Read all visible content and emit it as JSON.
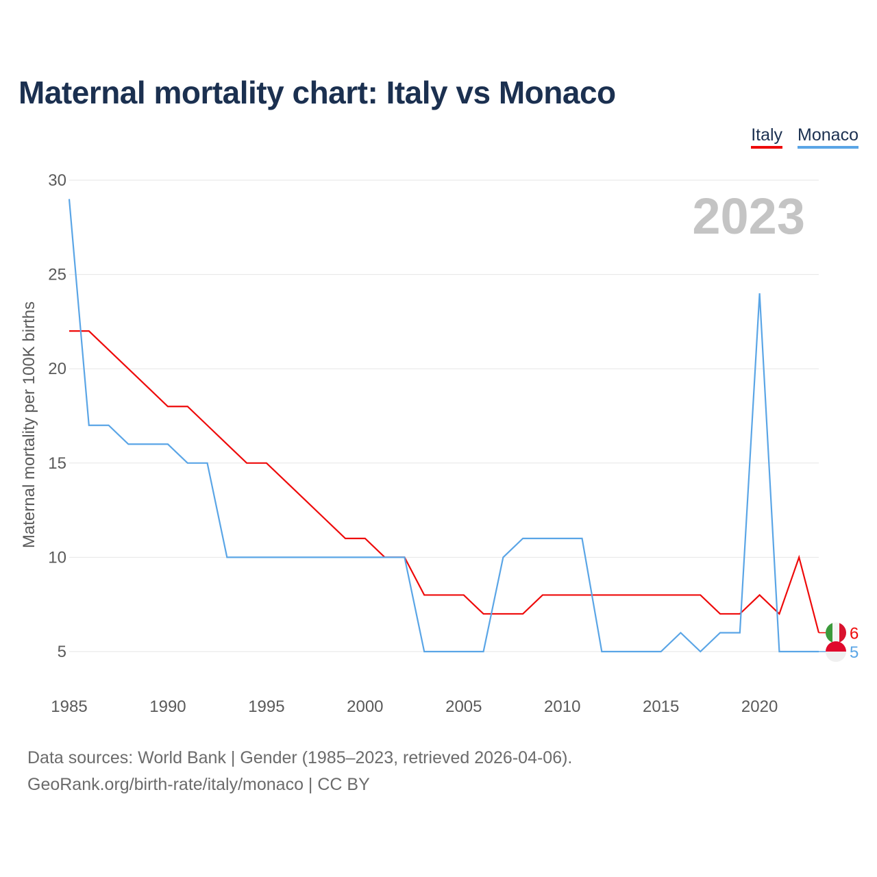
{
  "header": {
    "title": "Maternal mortality chart: Italy vs Monaco"
  },
  "legend": {
    "italy": "Italy",
    "monaco": "Monaco"
  },
  "footer": {
    "line1": "Data sources: World Bank | Gender (1985–2023, retrieved 2026-04-06).",
    "line2": "GeoRank.org/birth-rate/italy/monaco | CC BY"
  },
  "chart_data": {
    "type": "line",
    "title": "Maternal mortality chart: Italy vs Monaco",
    "year_label": "2023",
    "ylabel": "Maternal mortality per 100K births",
    "xlabel": "",
    "xlim": [
      1985,
      2023
    ],
    "ylim": [
      3,
      30
    ],
    "x_ticks": [
      1985,
      1990,
      1995,
      2000,
      2005,
      2010,
      2015,
      2020
    ],
    "y_ticks": [
      5,
      10,
      15,
      20,
      25,
      30
    ],
    "grid": true,
    "legend_position": "top-right",
    "x": [
      1985,
      1986,
      1987,
      1988,
      1989,
      1990,
      1991,
      1992,
      1993,
      1994,
      1995,
      1996,
      1997,
      1998,
      1999,
      2000,
      2001,
      2002,
      2003,
      2004,
      2005,
      2006,
      2007,
      2008,
      2009,
      2010,
      2011,
      2012,
      2013,
      2014,
      2015,
      2016,
      2017,
      2018,
      2019,
      2020,
      2021,
      2022,
      2023
    ],
    "series": [
      {
        "name": "Italy",
        "color": "#ee0a0a",
        "values": [
          22,
          22,
          21,
          20,
          19,
          18,
          18,
          17,
          16,
          15,
          15,
          14,
          13,
          12,
          11,
          11,
          10,
          10,
          8,
          8,
          8,
          7,
          7,
          7,
          8,
          8,
          8,
          8,
          8,
          8,
          8,
          8,
          8,
          7,
          7,
          8,
          7,
          10,
          6
        ],
        "end_label": "6"
      },
      {
        "name": "Monaco",
        "color": "#5aa5e6",
        "values": [
          29,
          17,
          17,
          16,
          16,
          16,
          15,
          15,
          10,
          10,
          10,
          10,
          10,
          10,
          10,
          10,
          10,
          10,
          5,
          5,
          5,
          5,
          10,
          11,
          11,
          11,
          11,
          5,
          5,
          5,
          5,
          6,
          5,
          6,
          6,
          24,
          5,
          5,
          5
        ],
        "end_label": "5"
      }
    ]
  }
}
